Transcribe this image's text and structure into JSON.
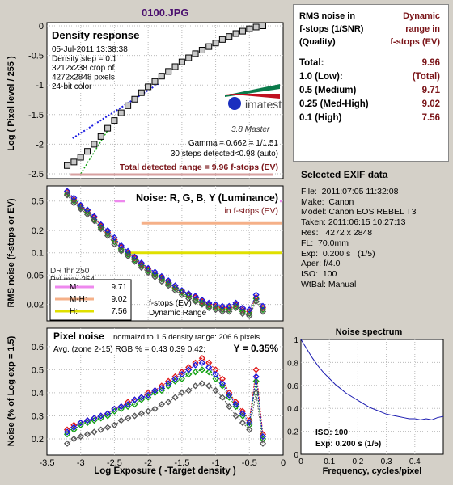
{
  "header": {
    "filename": "0100.JPG"
  },
  "info_table": {
    "col1": [
      "RMS noise in",
      "f-stops (1/SNR)",
      "(Quality)"
    ],
    "col2": [
      "Dynamic",
      "range in",
      "f-stops (EV)"
    ],
    "rows": [
      {
        "label": "Total:",
        "value": "9.96"
      },
      {
        "label": "1.0  (Low):",
        "value": "(Total)"
      },
      {
        "label": "0.5  (Medium)",
        "value": "9.71"
      },
      {
        "label": "0.25 (Med-High)",
        "value": "9.02"
      },
      {
        "label": "0.1  (High)",
        "value": "7.56"
      }
    ]
  },
  "exif": {
    "title": "Selected EXIF data",
    "lines": [
      "File:  2011:07:05 11:32:08",
      "Make:  Canon",
      "Model: Canon EOS REBEL T3",
      "Taken: 2011:06:15 10:27:13",
      "Res:   4272 x 2848",
      "FL:  70.0mm",
      "Exp:  0.200 s   (1/5)",
      "Aper: f/4.0",
      "ISO:  100",
      "WtBal: Manual"
    ]
  },
  "density": {
    "title": "Density response",
    "notes": [
      "05-Jul-2011 13:38:38",
      "Density step = 0.1",
      "3212x238 crop of",
      "4272x2848 pixels",
      "24-bit color"
    ],
    "logo_text": "imatest",
    "logo_sub": "3.8  Master",
    "gamma": "Gamma = 0.662 = 1/1.51",
    "steps": "30 steps detected<0.98 (auto)",
    "range": "Total detected range = 9.96 f-stops (EV)",
    "ylabel": "Log ( Pixel level / 255 )",
    "yticks": [
      "0",
      "-0.5",
      "-1",
      "-1.5",
      "-2",
      "-2.5"
    ]
  },
  "noise": {
    "title": "Noise: R, G, B, Y (Luminance)",
    "subtitle": "in f-stops (EV)",
    "ylabel": "RMS noise (f-stops or EV)",
    "yticks": [
      "0.5",
      "0.2",
      "0.1",
      "0.05",
      "0.02"
    ],
    "dr_lines": [
      "DR thr 250",
      "Pxl max 254"
    ],
    "legend": [
      {
        "label": "M:",
        "value": "9.71",
        "color": "#ee88ee"
      },
      {
        "label": "M-H:",
        "value": "9.02",
        "color": "#f5b088"
      },
      {
        "label": "H:",
        "value": "7.56",
        "color": "#e0e000"
      }
    ],
    "annot": [
      "f-stops (EV)",
      "Dynamic Range"
    ]
  },
  "pixel": {
    "title": "Pixel noise",
    "norm": "normalzd to 1.5 density range: 206.6 pixels",
    "avg": "Avg. (zone 2-15) RGB % = 0.43  0.39  0.42;",
    "ybig": "Y = 0.35%",
    "ylabel": "Noise (% of Log exp = 1.5)",
    "xlabel": "Log Exposure ( -Target density )",
    "yticks": [
      "0.6",
      "0.5",
      "0.4",
      "0.3",
      "0.2"
    ],
    "xticks": [
      "-3.5",
      "-3",
      "-2.5",
      "-2",
      "-1.5",
      "-1",
      "-0.5",
      "0"
    ]
  },
  "spectrum": {
    "title": "Noise spectrum",
    "xlabel": "Frequency, cycles/pixel",
    "xticks": [
      "0",
      "0.1",
      "0.2",
      "0.3",
      "0.4"
    ],
    "yticks": [
      "1",
      "0.8",
      "0.6",
      "0.4",
      "0.2",
      "0"
    ],
    "iso": "ISO:   100",
    "exp": "Exp:   0.200 s    (1/5)"
  },
  "chart_data": [
    {
      "type": "scatter",
      "title": "Density response",
      "ylabel": "Log ( Pixel level / 255 )",
      "ylim": [
        -2.5,
        0
      ],
      "x": [
        -3.2,
        -3.1,
        -3.0,
        -2.9,
        -2.8,
        -2.7,
        -2.6,
        -2.5,
        -2.4,
        -2.3,
        -2.2,
        -2.1,
        -2.0,
        -1.9,
        -1.8,
        -1.7,
        -1.6,
        -1.5,
        -1.4,
        -1.3,
        -1.2,
        -1.1,
        -1.0,
        -0.9,
        -0.8,
        -0.7,
        -0.6,
        -0.5,
        -0.4,
        -0.3
      ],
      "series": [
        {
          "values": [
            -2.36,
            -2.3,
            -2.22,
            -2.12,
            -2.0,
            -1.87,
            -1.73,
            -1.6,
            -1.47,
            -1.35,
            -1.24,
            -1.13,
            -1.03,
            -0.94,
            -0.85,
            -0.77,
            -0.69,
            -0.61,
            -0.54,
            -0.47,
            -0.41,
            -0.35,
            -0.29,
            -0.23,
            -0.18,
            -0.13,
            -0.09,
            -0.05,
            -0.02,
            0.0
          ]
        }
      ]
    },
    {
      "type": "line",
      "title": "Noise: R, G, B, Y (Luminance)",
      "ylabel": "RMS noise (f-stops or EV)",
      "ylim": [
        0.012,
        0.8
      ],
      "x": [
        -3.2,
        -3.1,
        -3.0,
        -2.9,
        -2.8,
        -2.7,
        -2.6,
        -2.5,
        -2.4,
        -2.3,
        -2.2,
        -2.1,
        -2.0,
        -1.9,
        -1.8,
        -1.7,
        -1.6,
        -1.5,
        -1.4,
        -1.3,
        -1.2,
        -1.1,
        -1.0,
        -0.9,
        -0.8,
        -0.7,
        -0.6,
        -0.5,
        -0.4,
        -0.3
      ],
      "series": [
        {
          "values": [
            0.66,
            0.52,
            0.43,
            0.37,
            0.3,
            0.23,
            0.19,
            0.15,
            0.12,
            0.1,
            0.085,
            0.07,
            0.06,
            0.052,
            0.046,
            0.04,
            0.034,
            0.03,
            0.027,
            0.025,
            0.022,
            0.02,
            0.019,
            0.018,
            0.018,
            0.02,
            0.017,
            0.016,
            0.025,
            0.018
          ]
        },
        {
          "values": [
            0.62,
            0.5,
            0.41,
            0.35,
            0.28,
            0.22,
            0.18,
            0.14,
            0.11,
            0.095,
            0.08,
            0.067,
            0.057,
            0.05,
            0.044,
            0.038,
            0.033,
            0.029,
            0.026,
            0.023,
            0.021,
            0.019,
            0.018,
            0.017,
            0.017,
            0.019,
            0.016,
            0.015,
            0.024,
            0.017
          ]
        },
        {
          "values": [
            0.68,
            0.55,
            0.44,
            0.38,
            0.31,
            0.24,
            0.2,
            0.16,
            0.125,
            0.105,
            0.088,
            0.073,
            0.062,
            0.055,
            0.048,
            0.042,
            0.036,
            0.031,
            0.028,
            0.026,
            0.023,
            0.021,
            0.02,
            0.019,
            0.019,
            0.021,
            0.018,
            0.017,
            0.027,
            0.019
          ]
        },
        {
          "values": [
            0.6,
            0.47,
            0.39,
            0.33,
            0.27,
            0.21,
            0.17,
            0.13,
            0.105,
            0.09,
            0.076,
            0.063,
            0.054,
            0.047,
            0.041,
            0.036,
            0.031,
            0.027,
            0.024,
            0.022,
            0.02,
            0.018,
            0.017,
            0.016,
            0.016,
            0.018,
            0.015,
            0.014,
            0.022,
            0.016
          ]
        }
      ],
      "thresholds": [
        0.5,
        0.25,
        0.1
      ]
    },
    {
      "type": "line",
      "title": "Pixel noise",
      "xlabel": "Log Exposure ( -Target density )",
      "ylabel": "Noise (% of Log exp = 1.5)",
      "xlim": [
        -3.5,
        0
      ],
      "ylim": [
        0.13,
        0.68
      ],
      "x": [
        -3.2,
        -3.1,
        -3.0,
        -2.9,
        -2.8,
        -2.7,
        -2.6,
        -2.5,
        -2.4,
        -2.3,
        -2.2,
        -2.1,
        -2.0,
        -1.9,
        -1.8,
        -1.7,
        -1.6,
        -1.5,
        -1.4,
        -1.3,
        -1.2,
        -1.1,
        -1.0,
        -0.9,
        -0.8,
        -0.7,
        -0.6,
        -0.5,
        -0.4,
        -0.3
      ],
      "series": [
        {
          "values": [
            0.24,
            0.26,
            0.27,
            0.28,
            0.29,
            0.3,
            0.31,
            0.33,
            0.34,
            0.36,
            0.37,
            0.38,
            0.4,
            0.41,
            0.43,
            0.45,
            0.47,
            0.49,
            0.51,
            0.53,
            0.55,
            0.53,
            0.5,
            0.46,
            0.4,
            0.36,
            0.32,
            0.28,
            0.5,
            0.22
          ]
        },
        {
          "values": [
            0.22,
            0.24,
            0.26,
            0.27,
            0.28,
            0.29,
            0.3,
            0.32,
            0.33,
            0.34,
            0.35,
            0.37,
            0.38,
            0.4,
            0.41,
            0.43,
            0.45,
            0.46,
            0.48,
            0.49,
            0.5,
            0.49,
            0.46,
            0.43,
            0.38,
            0.34,
            0.3,
            0.26,
            0.45,
            0.2
          ]
        },
        {
          "values": [
            0.23,
            0.25,
            0.27,
            0.28,
            0.29,
            0.3,
            0.31,
            0.33,
            0.34,
            0.35,
            0.37,
            0.38,
            0.39,
            0.41,
            0.42,
            0.44,
            0.46,
            0.48,
            0.5,
            0.52,
            0.53,
            0.51,
            0.48,
            0.44,
            0.39,
            0.35,
            0.31,
            0.27,
            0.47,
            0.21
          ]
        },
        {
          "values": [
            0.18,
            0.2,
            0.21,
            0.22,
            0.23,
            0.24,
            0.25,
            0.26,
            0.28,
            0.29,
            0.3,
            0.31,
            0.32,
            0.33,
            0.35,
            0.36,
            0.38,
            0.4,
            0.41,
            0.43,
            0.44,
            0.43,
            0.41,
            0.38,
            0.34,
            0.3,
            0.27,
            0.24,
            0.4,
            0.18
          ]
        }
      ]
    },
    {
      "type": "line",
      "title": "Noise spectrum",
      "xlabel": "Frequency, cycles/pixel",
      "xlim": [
        0,
        0.5
      ],
      "ylim": [
        0,
        1
      ],
      "x": [
        0.0,
        0.02,
        0.04,
        0.06,
        0.08,
        0.1,
        0.12,
        0.14,
        0.16,
        0.18,
        0.2,
        0.22,
        0.24,
        0.26,
        0.28,
        0.3,
        0.32,
        0.34,
        0.36,
        0.38,
        0.4,
        0.42,
        0.44,
        0.46,
        0.48,
        0.5
      ],
      "series": [
        {
          "values": [
            1.0,
            0.92,
            0.84,
            0.77,
            0.71,
            0.66,
            0.61,
            0.57,
            0.53,
            0.5,
            0.47,
            0.44,
            0.41,
            0.39,
            0.37,
            0.35,
            0.34,
            0.33,
            0.32,
            0.31,
            0.31,
            0.3,
            0.31,
            0.3,
            0.32,
            0.33
          ]
        }
      ]
    }
  ]
}
